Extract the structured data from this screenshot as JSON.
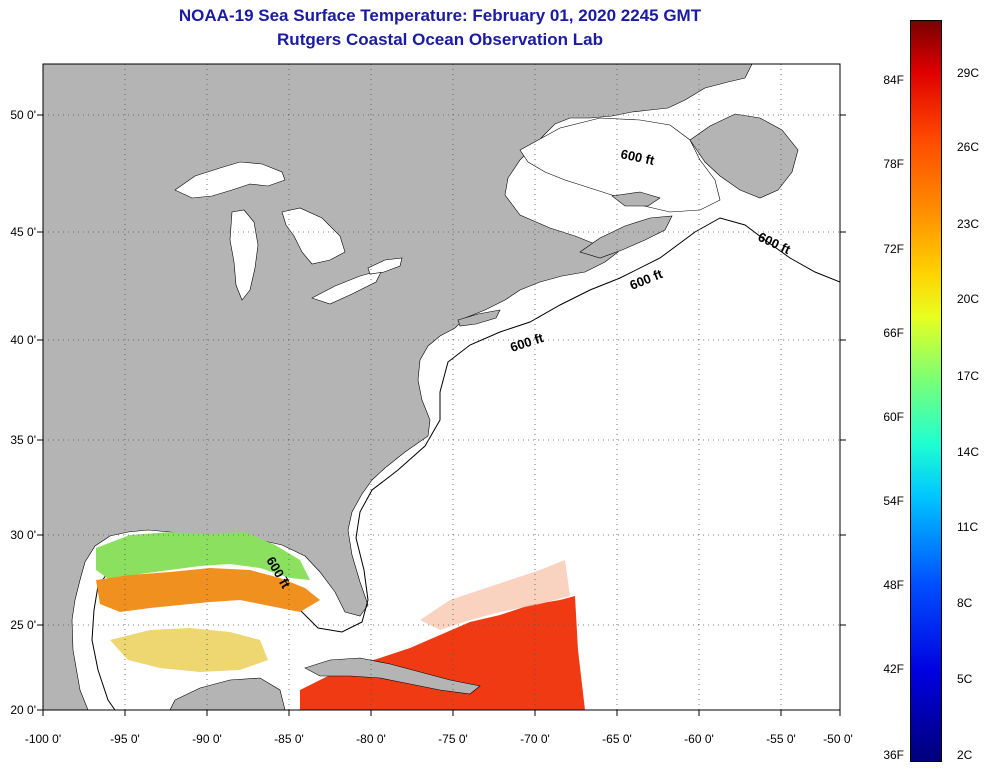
{
  "title": {
    "line1": "NOAA-19 Sea Surface Temperature:  February 01, 2020 2245 GMT",
    "line2": "Rutgers Coastal Ocean Observation Lab"
  },
  "axes": {
    "lat_labels": [
      "50 0'",
      "45 0'",
      "40 0'",
      "35 0'",
      "30 0'",
      "25 0'",
      "20 0'"
    ],
    "lon_labels": [
      "-100 0'",
      "-95 0'",
      "-90 0'",
      "-85 0'",
      "-80 0'",
      "-75 0'",
      "-70 0'",
      "-65 0'",
      "-60 0'",
      "-55 0'",
      "-50 0'"
    ]
  },
  "contour_labels": [
    "600 ft",
    "600 ft",
    "600 ft",
    "600 ft",
    "600 ft"
  ],
  "colorbar": {
    "fahrenheit": [
      "84F",
      "78F",
      "72F",
      "66F",
      "60F",
      "54F",
      "48F",
      "42F",
      "36F"
    ],
    "celsius": [
      "29C",
      "26C",
      "23C",
      "20C",
      "17C",
      "14C",
      "11C",
      "8C",
      "5C",
      "2C"
    ]
  },
  "colors": {
    "land": "#b4b4b4",
    "ocean": "#ffffff",
    "title": "#1a1aa6",
    "warm_sst": "#f03a14",
    "gulf_sst": "#f0901e"
  }
}
